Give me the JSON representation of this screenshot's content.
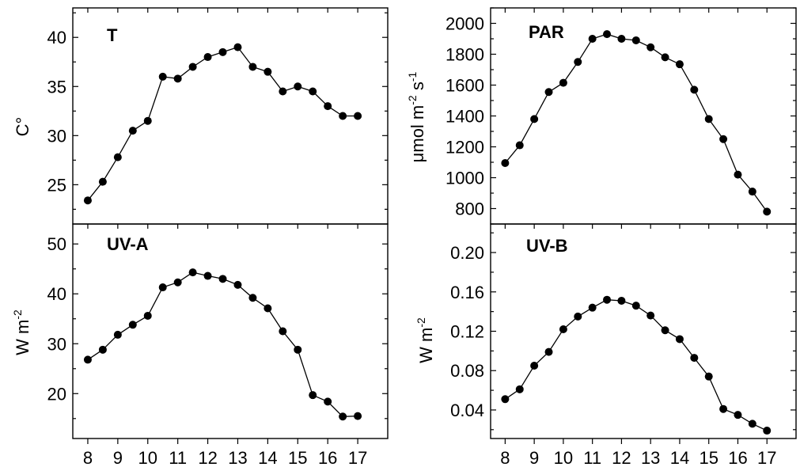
{
  "chart_data": [
    {
      "id": "T",
      "type": "line",
      "panel_label": "T",
      "ylabel": "C°",
      "xlabel": "",
      "xlim": [
        7.5,
        18
      ],
      "ylim": [
        21,
        43
      ],
      "yticks": [
        "25",
        "30",
        "35",
        "40"
      ],
      "x": [
        8,
        8.5,
        9,
        9.5,
        10,
        10.5,
        11,
        11.5,
        12,
        12.5,
        13,
        13.5,
        14,
        14.5,
        15,
        15.5,
        16,
        16.5,
        17
      ],
      "y": [
        23.4,
        25.3,
        27.8,
        30.5,
        31.5,
        36.0,
        35.8,
        37.0,
        38.0,
        38.5,
        39.0,
        37.0,
        36.5,
        34.5,
        35.0,
        34.5,
        33.0,
        32.0,
        32.0
      ]
    },
    {
      "id": "PAR",
      "type": "line",
      "panel_label": "PAR",
      "ylabel": "μmol m-2 s-1",
      "xlabel": "",
      "xlim": [
        7.5,
        18
      ],
      "ylim": [
        700,
        2100
      ],
      "yticks": [
        "800",
        "1000",
        "1200",
        "1400",
        "1600",
        "1800",
        "2000"
      ],
      "x": [
        8,
        8.5,
        9,
        9.5,
        10,
        10.5,
        11,
        11.5,
        12,
        12.5,
        13,
        13.5,
        14,
        14.5,
        15,
        15.5,
        16,
        16.5,
        17
      ],
      "y": [
        1095,
        1210,
        1380,
        1555,
        1615,
        1750,
        1900,
        1930,
        1900,
        1890,
        1845,
        1780,
        1735,
        1570,
        1380,
        1250,
        1020,
        910,
        780
      ]
    },
    {
      "id": "UV-A",
      "type": "line",
      "panel_label": "UV-A",
      "ylabel": "W m-2",
      "xlabel": "",
      "xlim": [
        7.5,
        18
      ],
      "ylim": [
        11,
        54
      ],
      "yticks": [
        "20",
        "30",
        "40",
        "50"
      ],
      "xticks": [
        "8",
        "9",
        "10",
        "11",
        "12",
        "13",
        "14",
        "15",
        "16",
        "17"
      ],
      "x": [
        8,
        8.5,
        9,
        9.5,
        10,
        10.5,
        11,
        11.5,
        12,
        12.5,
        13,
        13.5,
        14,
        14.5,
        15,
        15.5,
        16,
        16.5,
        17
      ],
      "y": [
        26.8,
        28.8,
        31.8,
        33.8,
        35.6,
        41.3,
        42.3,
        44.3,
        43.6,
        43.0,
        41.8,
        39.2,
        37.1,
        32.5,
        28.8,
        19.7,
        18.4,
        15.4,
        15.5
      ]
    },
    {
      "id": "UV-B",
      "type": "line",
      "panel_label": "UV-B",
      "ylabel": "W m-2",
      "xlabel": "",
      "xlim": [
        7.5,
        18
      ],
      "ylim": [
        0.011,
        0.229
      ],
      "yticks": [
        "0.04",
        "0.08",
        "0.12",
        "0.16",
        "0.20"
      ],
      "xticks": [
        "8",
        "9",
        "10",
        "11",
        "12",
        "13",
        "14",
        "15",
        "16",
        "17"
      ],
      "x": [
        8,
        8.5,
        9,
        9.5,
        10,
        10.5,
        11,
        11.5,
        12,
        12.5,
        13,
        13.5,
        14,
        14.5,
        15,
        15.5,
        16,
        16.5,
        17
      ],
      "y": [
        0.051,
        0.061,
        0.085,
        0.099,
        0.122,
        0.135,
        0.144,
        0.152,
        0.151,
        0.146,
        0.136,
        0.121,
        0.112,
        0.093,
        0.074,
        0.041,
        0.035,
        0.026,
        0.019
      ]
    }
  ]
}
